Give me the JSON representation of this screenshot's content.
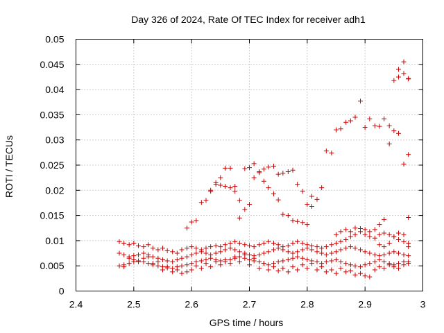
{
  "chart_data": {
    "type": "scatter",
    "title": "Day 326 of 2024, Rate Of TEC Index for receiver adh1",
    "xlabel": "GPS time / hours",
    "ylabel": "ROTI / TECUs",
    "xlim": [
      2.4,
      3.0
    ],
    "ylim": [
      0,
      0.05
    ],
    "x_ticks": [
      "2.4",
      "2.5",
      "2.6",
      "2.7",
      "2.8",
      "2.9",
      "3"
    ],
    "x_tick_values": [
      2.4,
      2.5,
      2.6,
      2.7,
      2.8,
      2.9,
      3.0
    ],
    "y_ticks": [
      "0",
      "0.005",
      "0.01",
      "0.015",
      "0.02",
      "0.025",
      "0.03",
      "0.035",
      "0.04",
      "0.045",
      "0.05"
    ],
    "y_tick_values": [
      0,
      0.005,
      0.01,
      0.015,
      0.02,
      0.025,
      0.03,
      0.035,
      0.04,
      0.045,
      0.05
    ],
    "grid": true,
    "marker": "plus",
    "marker_color": "#cc0000",
    "series": [
      {
        "x": [
          2.592,
          2.6,
          2.608,
          2.617,
          2.625,
          2.633,
          2.642,
          2.65,
          2.658,
          2.667,
          2.675,
          2.683,
          2.692,
          2.7,
          2.708,
          2.717,
          2.725,
          2.733,
          2.742,
          2.75,
          2.758,
          2.767,
          2.775,
          2.783,
          2.792,
          2.8,
          2.808,
          2.817,
          2.825,
          2.833,
          2.842,
          2.85,
          2.858,
          2.867,
          2.875,
          2.883,
          2.892,
          2.9,
          2.908,
          2.917,
          2.925,
          2.933,
          2.942,
          2.95,
          2.958,
          2.967,
          2.975
        ],
        "y": [
          0.0125,
          0.0137,
          0.014,
          0.0176,
          0.018,
          0.02,
          0.0212,
          0.021,
          0.0208,
          0.0205,
          0.0198,
          0.018,
          0.0162,
          0.0172,
          0.0225,
          0.0235,
          0.0218,
          0.0205,
          0.0193,
          0.0181,
          0.0152,
          0.015,
          0.014,
          0.0138,
          0.0136,
          0.0132,
          0.0168,
          0.0182,
          0.0205,
          0.0278,
          0.0274,
          0.032,
          0.0322,
          0.0335,
          0.0338,
          0.0345,
          0.0377,
          0.0325,
          0.0342,
          0.0328,
          0.0327,
          0.0342,
          0.0328,
          0.0318,
          0.0313,
          0.0252,
          0.0271
        ]
      },
      {
        "x": [
          2.633,
          2.642,
          2.65,
          2.658,
          2.667,
          2.675,
          2.683,
          2.692,
          2.7,
          2.708,
          2.717,
          2.725,
          2.733,
          2.742,
          2.75,
          2.758,
          2.767,
          2.775,
          2.783,
          2.792,
          2.8,
          2.808
        ],
        "y": [
          0.0198,
          0.0215,
          0.0225,
          0.0244,
          0.0244,
          0.0208,
          0.0145,
          0.0243,
          0.0245,
          0.0253,
          0.0237,
          0.0242,
          0.0246,
          0.0248,
          0.0232,
          0.0234,
          0.0237,
          0.024,
          0.0212,
          0.0198,
          0.0172,
          0.0188
        ]
      },
      {
        "x": [
          2.85,
          2.858,
          2.867,
          2.875,
          2.883,
          2.892,
          2.9,
          2.908,
          2.917,
          2.925,
          2.933,
          2.942,
          2.95,
          2.958,
          2.967,
          2.975
        ],
        "y": [
          0.0112,
          0.0118,
          0.0122,
          0.0118,
          0.0125,
          0.0124,
          0.0122,
          0.0118,
          0.0122,
          0.0132,
          0.0142,
          0.0292,
          0.0418,
          0.0425,
          0.0455,
          0.0422
        ]
      },
      {
        "x": [
          2.958,
          2.967,
          2.975,
          2.975
        ],
        "y": [
          0.044,
          0.0432,
          0.0421,
          0.0146
        ]
      },
      {
        "x": [
          2.475,
          2.483,
          2.492,
          2.5,
          2.508,
          2.517,
          2.525,
          2.533,
          2.542,
          2.55,
          2.558,
          2.567,
          2.575,
          2.583,
          2.592,
          2.6,
          2.608,
          2.617,
          2.625,
          2.633,
          2.642,
          2.65,
          2.658,
          2.667,
          2.675,
          2.683,
          2.692,
          2.7,
          2.708,
          2.717,
          2.725,
          2.733,
          2.742,
          2.75,
          2.758,
          2.767,
          2.775,
          2.783,
          2.792,
          2.8,
          2.808,
          2.817,
          2.825,
          2.833,
          2.842,
          2.85,
          2.858,
          2.867,
          2.875,
          2.883,
          2.892,
          2.9,
          2.908,
          2.917,
          2.925,
          2.933,
          2.942,
          2.95,
          2.958,
          2.967,
          2.975
        ],
        "y": [
          0.0098,
          0.0095,
          0.0092,
          0.0095,
          0.009,
          0.0088,
          0.0092,
          0.0085,
          0.0082,
          0.0085,
          0.008,
          0.0078,
          0.0075,
          0.0082,
          0.0085,
          0.0088,
          0.0085,
          0.0082,
          0.0085,
          0.0088,
          0.009,
          0.0088,
          0.0092,
          0.0095,
          0.0098,
          0.0095,
          0.0092,
          0.009,
          0.0088,
          0.0092,
          0.0095,
          0.0098,
          0.0095,
          0.0092,
          0.0088,
          0.009,
          0.0095,
          0.0098,
          0.0095,
          0.0092,
          0.009,
          0.0088,
          0.0085,
          0.0088,
          0.0092,
          0.0095,
          0.0098,
          0.0102,
          0.0108,
          0.0112,
          0.0118,
          0.0112,
          0.0108,
          0.0105,
          0.0112,
          0.0115,
          0.0112,
          0.0108,
          0.0102,
          0.0098,
          0.0095
        ]
      },
      {
        "x": [
          2.475,
          2.483,
          2.492,
          2.5,
          2.508,
          2.517,
          2.525,
          2.533,
          2.542,
          2.55,
          2.558,
          2.567,
          2.575,
          2.583,
          2.592,
          2.6,
          2.608,
          2.617,
          2.625,
          2.633,
          2.642,
          2.65,
          2.658,
          2.667,
          2.675,
          2.683,
          2.692,
          2.7,
          2.708,
          2.717,
          2.725,
          2.733,
          2.742,
          2.75,
          2.758,
          2.767,
          2.775,
          2.783,
          2.792,
          2.8,
          2.808,
          2.817,
          2.825,
          2.833,
          2.842,
          2.85,
          2.858,
          2.867,
          2.875,
          2.883,
          2.892,
          2.9,
          2.908,
          2.917,
          2.925,
          2.933,
          2.942,
          2.95,
          2.958,
          2.967,
          2.975
        ],
        "y": [
          0.0075,
          0.0072,
          0.0068,
          0.007,
          0.0072,
          0.0075,
          0.0072,
          0.0068,
          0.0065,
          0.0062,
          0.006,
          0.0058,
          0.0062,
          0.0065,
          0.0068,
          0.0072,
          0.0075,
          0.0078,
          0.0075,
          0.0072,
          0.0075,
          0.0078,
          0.0082,
          0.0085,
          0.0082,
          0.0078,
          0.0075,
          0.0072,
          0.007,
          0.0072,
          0.0075,
          0.0078,
          0.0082,
          0.0085,
          0.0082,
          0.0078,
          0.0075,
          0.0078,
          0.0082,
          0.0085,
          0.0082,
          0.0078,
          0.0075,
          0.0072,
          0.0075,
          0.0078,
          0.0082,
          0.0085,
          0.0088,
          0.0085,
          0.0082,
          0.0078,
          0.0075,
          0.0072,
          0.007,
          0.0072,
          0.0075,
          0.0078,
          0.0075,
          0.0072,
          0.007
        ]
      },
      {
        "x": [
          2.475,
          2.483,
          2.492,
          2.5,
          2.508,
          2.517,
          2.525,
          2.533,
          2.542,
          2.55,
          2.558,
          2.567,
          2.575,
          2.583,
          2.592,
          2.6,
          2.608,
          2.617,
          2.625,
          2.633,
          2.642,
          2.65,
          2.658,
          2.667,
          2.675,
          2.683,
          2.692,
          2.7,
          2.708,
          2.717,
          2.725,
          2.733,
          2.742,
          2.75,
          2.758,
          2.767,
          2.775,
          2.783,
          2.792,
          2.8,
          2.808,
          2.817,
          2.825,
          2.833,
          2.842,
          2.85,
          2.858,
          2.867,
          2.875,
          2.883,
          2.892,
          2.9,
          2.908,
          2.917,
          2.925,
          2.933,
          2.942,
          2.95,
          2.958,
          2.967,
          2.975
        ],
        "y": [
          0.005,
          0.0052,
          0.0055,
          0.0058,
          0.006,
          0.0058,
          0.0055,
          0.0052,
          0.005,
          0.0048,
          0.0046,
          0.0045,
          0.0048,
          0.005,
          0.0052,
          0.0055,
          0.0058,
          0.006,
          0.0062,
          0.0065,
          0.0062,
          0.006,
          0.0058,
          0.0062,
          0.0065,
          0.0068,
          0.0065,
          0.0062,
          0.006,
          0.0058,
          0.0055,
          0.0052,
          0.0055,
          0.0058,
          0.006,
          0.0062,
          0.0065,
          0.0068,
          0.0065,
          0.0062,
          0.006,
          0.0058,
          0.0055,
          0.0058,
          0.006,
          0.0062,
          0.0058,
          0.0055,
          0.0052,
          0.005,
          0.0048,
          0.0052,
          0.0055,
          0.0058,
          0.0062,
          0.0058,
          0.0055,
          0.0052,
          0.0055,
          0.0058,
          0.0055
        ]
      },
      {
        "x": [
          2.483,
          2.5,
          2.517,
          2.533,
          2.55,
          2.567,
          2.583,
          2.6,
          2.617,
          2.633,
          2.65,
          2.667,
          2.683,
          2.7,
          2.717,
          2.733,
          2.75,
          2.767,
          2.783,
          2.8,
          2.817,
          2.833,
          2.85,
          2.867,
          2.883,
          2.9,
          2.917,
          2.933,
          2.95,
          2.967
        ],
        "y": [
          0.0048,
          0.0062,
          0.0065,
          0.0055,
          0.0042,
          0.0038,
          0.0035,
          0.0042,
          0.0045,
          0.0048,
          0.0052,
          0.0055,
          0.0058,
          0.0052,
          0.0045,
          0.0042,
          0.004,
          0.0038,
          0.0042,
          0.0045,
          0.0042,
          0.0038,
          0.0035,
          0.0038,
          0.0032,
          0.003,
          0.0042,
          0.0045,
          0.0048,
          0.0052
        ]
      },
      {
        "x": [
          2.492,
          2.508,
          2.525,
          2.542,
          2.558,
          2.575,
          2.592,
          2.608,
          2.625,
          2.642,
          2.658,
          2.675,
          2.692,
          2.708,
          2.725,
          2.742,
          2.758,
          2.775,
          2.792,
          2.808,
          2.825,
          2.842,
          2.858,
          2.875,
          2.892,
          2.908,
          2.925,
          2.942,
          2.958,
          2.975
        ],
        "y": [
          0.0065,
          0.0058,
          0.0068,
          0.0058,
          0.0048,
          0.0042,
          0.0038,
          0.005,
          0.0055,
          0.0058,
          0.0062,
          0.0068,
          0.0072,
          0.0065,
          0.0055,
          0.0048,
          0.0045,
          0.0048,
          0.0052,
          0.0055,
          0.0048,
          0.0042,
          0.0045,
          0.004,
          0.0035,
          0.0028,
          0.0048,
          0.0052,
          0.0045,
          0.0058
        ]
      },
      {
        "x": [
          2.925,
          2.933,
          2.942,
          2.95,
          2.958,
          2.967,
          2.975
        ],
        "y": [
          0.0092,
          0.0088,
          0.0095,
          0.0108,
          0.0115,
          0.0112,
          0.0088
        ]
      }
    ]
  }
}
